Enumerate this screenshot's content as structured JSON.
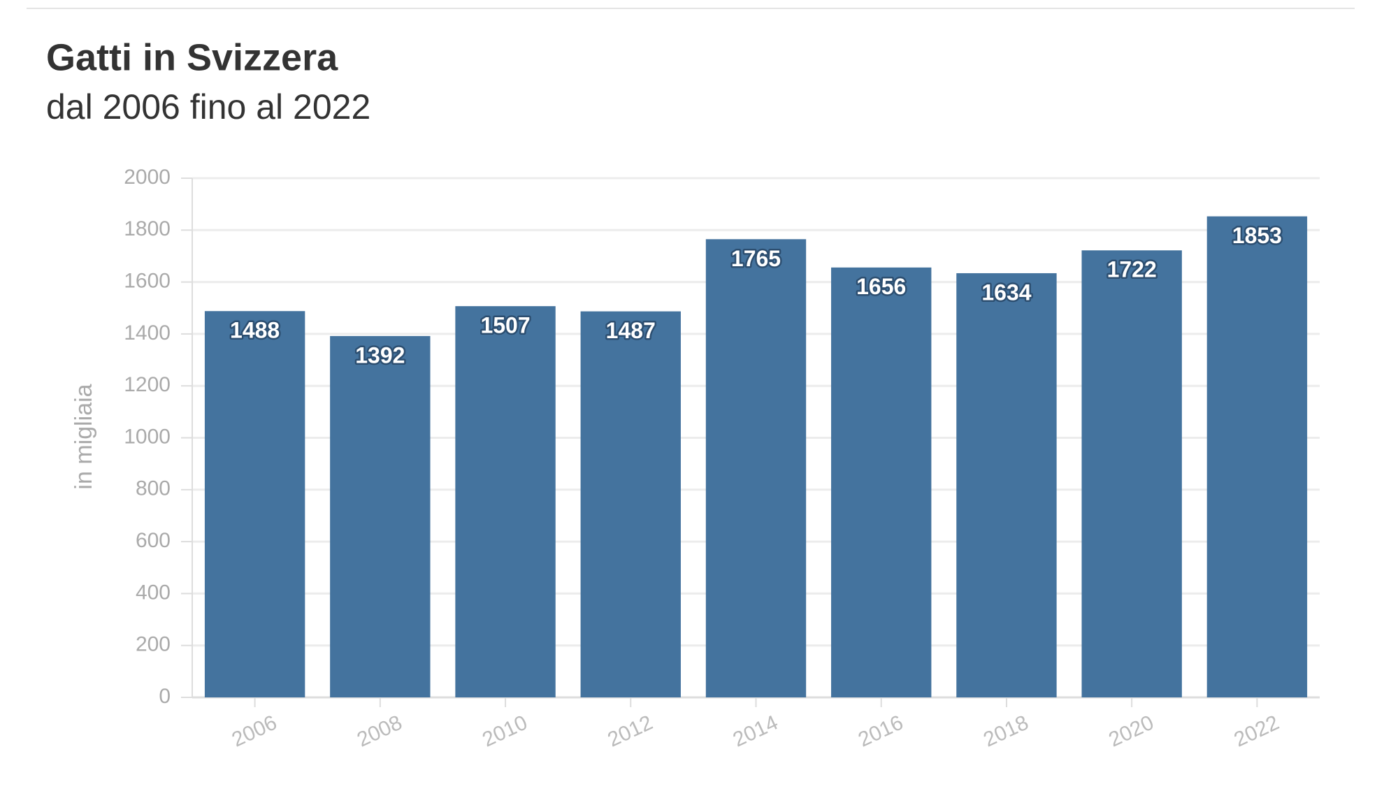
{
  "chart_data": {
    "type": "bar",
    "title": "Gatti in Svizzera",
    "subtitle": "dal 2006 fino al 2022",
    "y_label": "in migliaia",
    "categories": [
      "2006",
      "2008",
      "2010",
      "2012",
      "2014",
      "2016",
      "2018",
      "2020",
      "2022"
    ],
    "values": [
      1488,
      1392,
      1507,
      1487,
      1765,
      1656,
      1634,
      1722,
      1853
    ],
    "color": "#44739e",
    "ylim": [
      0,
      2000
    ],
    "yticks": [
      0,
      200,
      400,
      600,
      800,
      1000,
      1200,
      1400,
      1600,
      1800,
      2000
    ],
    "grid": true
  }
}
